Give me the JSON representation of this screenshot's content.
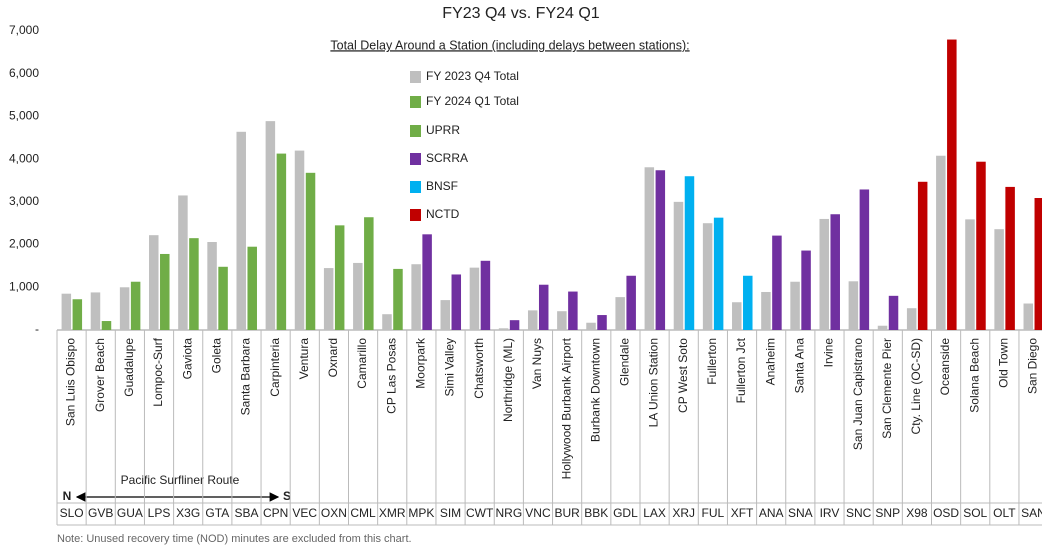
{
  "chart_data": {
    "type": "bar",
    "title": "FY23 Q4 vs. FY24 Q1",
    "subtitle": "Total Delay Around a Station (including delays between stations):",
    "categories": [
      "San Luis Obispo",
      "Grover Beach",
      "Guadalupe",
      "Lompoc-Surf",
      "Gaviota",
      "Goleta",
      "Santa Barbara",
      "Carpinteria",
      "Ventura",
      "Oxnard",
      "Camarillo",
      "CP Las Posas",
      "Moorpark",
      "Simi Valley",
      "Chatsworth",
      "Northridge (ML)",
      "Van Nuys",
      "Hollywood Burbank Airport",
      "Burbank Downtown",
      "Glendale",
      "LA Union Station",
      "CP West Soto",
      "Fullerton",
      "Fullerton Jct",
      "Anaheim",
      "Santa Ana",
      "Irvine",
      "San Juan Capistrano",
      "San Clemente Pier",
      "Cty. Line (OC-SD)",
      "Oceanside",
      "Solana Beach",
      "Old Town",
      "San Diego"
    ],
    "codes": [
      "SLO",
      "GVB",
      "GUA",
      "LPS",
      "X3G",
      "GTA",
      "SBA",
      "CPN",
      "VEC",
      "OXN",
      "CML",
      "XMR",
      "MPK",
      "SIM",
      "CWT",
      "NRG",
      "VNC",
      "BUR",
      "BBK",
      "GDL",
      "LAX",
      "XRJ",
      "FUL",
      "XFT",
      "ANA",
      "SNA",
      "IRV",
      "SNC",
      "SNP",
      "X98",
      "OSD",
      "SOL",
      "OLT",
      "SAN"
    ],
    "series": [
      {
        "name": "FY 2023 Q4 Total",
        "color": "#bfbfbf",
        "values": [
          850,
          880,
          1000,
          2220,
          3150,
          2060,
          4640,
          4890,
          4200,
          1450,
          1570,
          370,
          1540,
          700,
          1460,
          40,
          460,
          440,
          170,
          770,
          3810,
          3000,
          2500,
          650,
          890,
          1130,
          2600,
          1140,
          100,
          510,
          4080,
          2590,
          2360,
          620
        ]
      },
      {
        "name": "FY 2024 Q1 Total",
        "color": "#70ad47",
        "values": [
          720,
          210,
          1130,
          1780,
          2150,
          1480,
          1950,
          4130,
          3680,
          2450,
          2640,
          1430,
          2240,
          1300,
          1620,
          230,
          1060,
          900,
          350,
          1270,
          3740,
          3600,
          2630,
          1270,
          2210,
          1860,
          2710,
          3290,
          800,
          3470,
          6800,
          3940,
          3350,
          3090
        ],
        "colors": [
          "#70ad47",
          "#70ad47",
          "#70ad47",
          "#70ad47",
          "#70ad47",
          "#70ad47",
          "#70ad47",
          "#70ad47",
          "#70ad47",
          "#70ad47",
          "#70ad47",
          "#70ad47",
          "#7030a0",
          "#7030a0",
          "#7030a0",
          "#7030a0",
          "#7030a0",
          "#7030a0",
          "#7030a0",
          "#7030a0",
          "#7030a0",
          "#00b0f0",
          "#00b0f0",
          "#00b0f0",
          "#7030a0",
          "#7030a0",
          "#7030a0",
          "#7030a0",
          "#7030a0",
          "#c00000",
          "#c00000",
          "#c00000",
          "#c00000",
          "#c00000"
        ]
      }
    ],
    "railroads": [
      {
        "name": "UPRR",
        "color": "#70ad47"
      },
      {
        "name": "SCRRA",
        "color": "#7030a0"
      },
      {
        "name": "BNSF",
        "color": "#00b0f0"
      },
      {
        "name": "NCTD",
        "color": "#c00000"
      }
    ],
    "ylim": [
      0,
      7000
    ],
    "yticks": [
      {
        "value": 0,
        "label": "-"
      },
      {
        "value": 1000,
        "label": "1,000"
      },
      {
        "value": 2000,
        "label": "2,000"
      },
      {
        "value": 3000,
        "label": "3,000"
      },
      {
        "value": 4000,
        "label": "4,000"
      },
      {
        "value": 5000,
        "label": "5,000"
      },
      {
        "value": 6000,
        "label": "6,000"
      },
      {
        "value": 7000,
        "label": "7,000"
      }
    ],
    "route_label": "Pacific Surfliner Route",
    "route_start": "N",
    "route_end": "S",
    "note": "Note: Unused  recovery time (NOD) minutes are excluded from this chart."
  }
}
